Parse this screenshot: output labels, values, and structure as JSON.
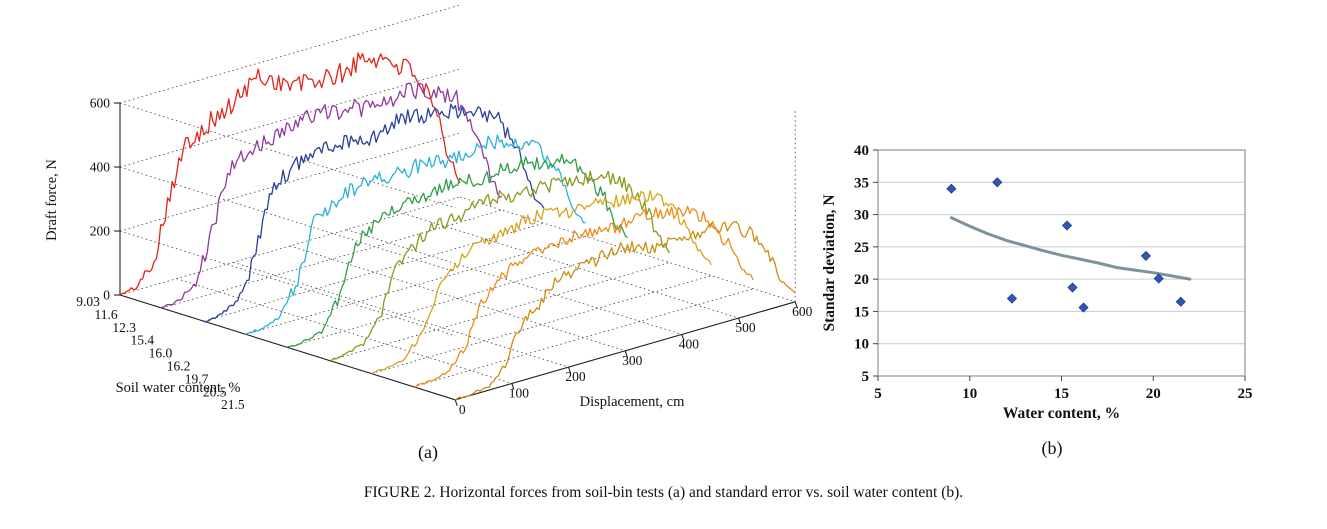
{
  "figure": {
    "caption_prefix": "FIGURE 2.",
    "caption_text": "Horizontal forces from soil-bin tests (a) and standard error vs. soil water content (b).",
    "panel_a_label": "(a)",
    "panel_b_label": "(b)"
  },
  "chart_data": [
    {
      "type": "line",
      "variant": "3d-waterfall",
      "xlabel": "Displacement, cm",
      "ylabel": "Soil water content, %",
      "zlabel": "Draft force, N",
      "xlim": [
        0,
        600
      ],
      "zlim": [
        0,
        600
      ],
      "x_ticks": [
        0,
        100,
        200,
        300,
        400,
        500,
        600
      ],
      "z_ticks": [
        0,
        200,
        400,
        600
      ],
      "y_tick_labels": [
        "9.03",
        "11.6",
        "12.3",
        "15.4",
        "16.0",
        "16.2",
        "19.7",
        "20.5",
        "21.5"
      ],
      "grid": "dotted",
      "profile_x": [
        0,
        30,
        60,
        90,
        120,
        180,
        240,
        300,
        360,
        420,
        480,
        520,
        560,
        580,
        600
      ],
      "series": [
        {
          "water_content": "9.03",
          "color": "#e1251b",
          "noise": 34,
          "values": [
            0,
            8,
            70,
            300,
            430,
            480,
            545,
            505,
            490,
            520,
            480,
            430,
            260,
            130,
            60
          ]
        },
        {
          "water_content": "11.6",
          "color": "#8e3a9e",
          "noise": 28,
          "values": [
            0,
            6,
            45,
            210,
            380,
            430,
            455,
            465,
            445,
            455,
            430,
            385,
            235,
            115,
            50
          ]
        },
        {
          "water_content": "12.3",
          "color": "#2c3f9c",
          "noise": 26,
          "values": [
            0,
            5,
            35,
            160,
            350,
            420,
            440,
            430,
            448,
            432,
            420,
            370,
            225,
            105,
            45
          ]
        },
        {
          "water_content": "15.4",
          "color": "#28b2d7",
          "noise": 24,
          "values": [
            0,
            5,
            28,
            125,
            285,
            350,
            368,
            378,
            362,
            372,
            355,
            315,
            195,
            92,
            40
          ]
        },
        {
          "water_content": "16.0",
          "color": "#2f9e49",
          "noise": 22,
          "values": [
            0,
            5,
            22,
            105,
            262,
            332,
            358,
            368,
            352,
            358,
            342,
            302,
            182,
            86,
            38
          ]
        },
        {
          "water_content": "16.2",
          "color": "#8a9a1d",
          "noise": 22,
          "values": [
            0,
            5,
            20,
            92,
            242,
            322,
            348,
            352,
            342,
            352,
            332,
            292,
            176,
            82,
            36
          ]
        },
        {
          "water_content": "19.7",
          "color": "#d6a51c",
          "noise": 20,
          "values": [
            0,
            4,
            16,
            82,
            222,
            302,
            328,
            338,
            322,
            332,
            312,
            272,
            162,
            76,
            34
          ]
        },
        {
          "water_content": "20.5",
          "color": "#ef8b1a",
          "noise": 20,
          "values": [
            0,
            4,
            15,
            72,
            202,
            292,
            318,
            328,
            312,
            322,
            302,
            262,
            156,
            72,
            30
          ]
        },
        {
          "water_content": "21.5",
          "color": "#c99014",
          "noise": 20,
          "values": [
            0,
            4,
            12,
            62,
            192,
            282,
            308,
            318,
            302,
            312,
            292,
            252,
            150,
            66,
            30
          ]
        }
      ]
    },
    {
      "type": "scatter",
      "xlabel": "Water content, %",
      "ylabel": "Standar deviation, N",
      "xlim": [
        5,
        25
      ],
      "ylim": [
        5,
        40
      ],
      "x_ticks": [
        5,
        10,
        15,
        20,
        25
      ],
      "y_ticks": [
        5,
        10,
        15,
        20,
        25,
        30,
        35,
        40
      ],
      "grid": "horizontal",
      "point_color": "#3156b5",
      "point_edge_color": "#1c3a8c",
      "trend_color": "#7d939b",
      "points": [
        [
          9,
          34
        ],
        [
          11.5,
          35
        ],
        [
          12.3,
          17
        ],
        [
          15.3,
          28.3
        ],
        [
          15.6,
          18.7
        ],
        [
          16.2,
          15.6
        ],
        [
          19.6,
          23.6
        ],
        [
          20.3,
          20.1
        ],
        [
          21.5,
          16.5
        ]
      ],
      "trend": [
        [
          9,
          29.5
        ],
        [
          10,
          28.2
        ],
        [
          11,
          27.0
        ],
        [
          12,
          26.0
        ],
        [
          13,
          25.2
        ],
        [
          14,
          24.4
        ],
        [
          15,
          23.7
        ],
        [
          16,
          23.1
        ],
        [
          17,
          22.5
        ],
        [
          18,
          21.8
        ],
        [
          19,
          21.4
        ],
        [
          20,
          21.0
        ],
        [
          21,
          20.5
        ],
        [
          22,
          20.0
        ]
      ]
    }
  ]
}
